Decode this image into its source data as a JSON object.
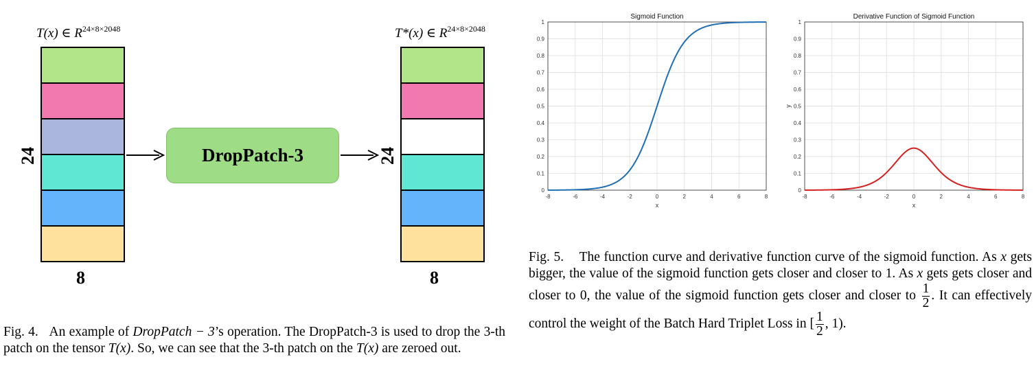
{
  "fig4": {
    "input_label": "T(x) ∈ R",
    "input_sup": "24×8×2048",
    "output_label": "T*(x) ∈ R",
    "output_sup": "24×8×2048",
    "height_label": "24",
    "width_label": "8",
    "box_label": "DropPatch-3",
    "input_patches": [
      {
        "color": "#b2e48a"
      },
      {
        "color": "#f278b0"
      },
      {
        "color": "#aab6dd"
      },
      {
        "color": "#5fe7d3"
      },
      {
        "color": "#63b4fb"
      },
      {
        "color": "#ffe19e"
      }
    ],
    "output_patches": [
      {
        "color": "#b2e48a"
      },
      {
        "color": "#f278b0"
      },
      {
        "color": "#ffffff"
      },
      {
        "color": "#5fe7d3"
      },
      {
        "color": "#63b4fb"
      },
      {
        "color": "#ffe19e"
      }
    ],
    "caption_num": "Fig. 4.",
    "caption_a": "An example of ",
    "caption_math1": "DropPatch − 3",
    "caption_b": "’s operation. The DropPatch-3 is used to drop the 3-th patch on the tensor ",
    "caption_math2": "T(x)",
    "caption_c": ". So, we can see that the 3-th patch on the ",
    "caption_math3": "T(x)",
    "caption_d": " are zeroed out."
  },
  "fig5": {
    "caption_num": "Fig. 5.",
    "caption_a": "The function curve and derivative function curve of the sigmoid function. As ",
    "caption_x1": "x",
    "caption_b": " gets bigger, the value of the sigmoid function gets closer and closer to 1. As ",
    "caption_x2": "x",
    "caption_c": " gets gets closer and closer to 0, the value of the sigmoid function gets closer and closer to ",
    "caption_d": ". It can effectively control the weight of the Batch Hard Triplet Loss in [",
    "caption_e": ", 1).",
    "frac_num": "1",
    "frac_den": "2"
  },
  "chart_data": [
    {
      "type": "line",
      "title": "Sigmoid Function",
      "xlabel": "x",
      "ylabel": "",
      "xlim": [
        -8,
        8
      ],
      "ylim": [
        0,
        1
      ],
      "xticks": [
        "-8",
        "-6",
        "-4",
        "-2",
        "0",
        "2",
        "4",
        "6",
        "8"
      ],
      "yticks": [
        "0",
        "0.1",
        "0.2",
        "0.3",
        "0.4",
        "0.5",
        "0.6",
        "0.7",
        "0.8",
        "0.9",
        "1"
      ],
      "grid": true,
      "series": [
        {
          "function": "sigmoid",
          "color": "#1f6fb5",
          "x": [
            -8,
            -6,
            -4,
            -2,
            0,
            2,
            4,
            6,
            8
          ],
          "y": [
            0.0003,
            0.0025,
            0.018,
            0.119,
            0.5,
            0.881,
            0.982,
            0.9975,
            0.9997
          ]
        }
      ]
    },
    {
      "type": "line",
      "title": "Derivative Function of Sigmoid Function",
      "xlabel": "x",
      "ylabel": "y",
      "xlim": [
        -8,
        8
      ],
      "ylim": [
        0,
        1
      ],
      "xticks": [
        "-8",
        "-6",
        "-4",
        "-2",
        "0",
        "2",
        "4",
        "6",
        "8"
      ],
      "yticks": [
        "0",
        "0.1",
        "0.2",
        "0.3",
        "0.4",
        "0.5",
        "0.6",
        "0.7",
        "0.8",
        "0.9",
        "1"
      ],
      "grid": true,
      "series": [
        {
          "function": "sigmoid_derivative",
          "color": "#d62020",
          "x": [
            -8,
            -6,
            -4,
            -2,
            0,
            2,
            4,
            6,
            8
          ],
          "y": [
            0.0003,
            0.0025,
            0.0177,
            0.105,
            0.25,
            0.105,
            0.0177,
            0.0025,
            0.0003
          ]
        }
      ]
    }
  ]
}
